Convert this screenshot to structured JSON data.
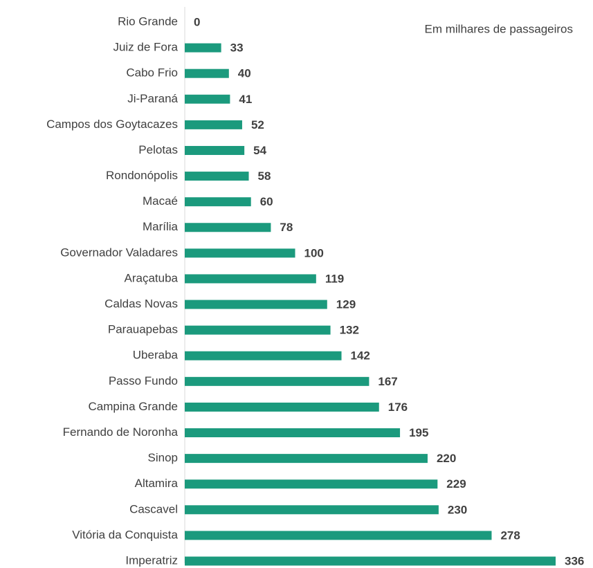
{
  "chart_data": {
    "type": "barh",
    "annotation": "Em milhares de passageiros",
    "categories": [
      "Rio Grande",
      "Juiz de Fora",
      "Cabo Frio",
      "Ji-Paraná",
      "Campos dos Goytacazes",
      "Pelotas",
      "Rondonópolis",
      "Macaé",
      "Marília",
      "Governador Valadares",
      "Araçatuba",
      "Caldas Novas",
      "Parauapebas",
      "Uberaba",
      "Passo Fundo",
      "Campina Grande",
      "Fernando de Noronha",
      "Sinop",
      "Altamira",
      "Cascavel",
      "Vitória da Conquista",
      "Imperatriz"
    ],
    "values": [
      0,
      33,
      40,
      41,
      52,
      54,
      58,
      60,
      78,
      100,
      119,
      129,
      132,
      142,
      167,
      176,
      195,
      220,
      229,
      230,
      278,
      336
    ],
    "color": "#1b9a7d"
  }
}
